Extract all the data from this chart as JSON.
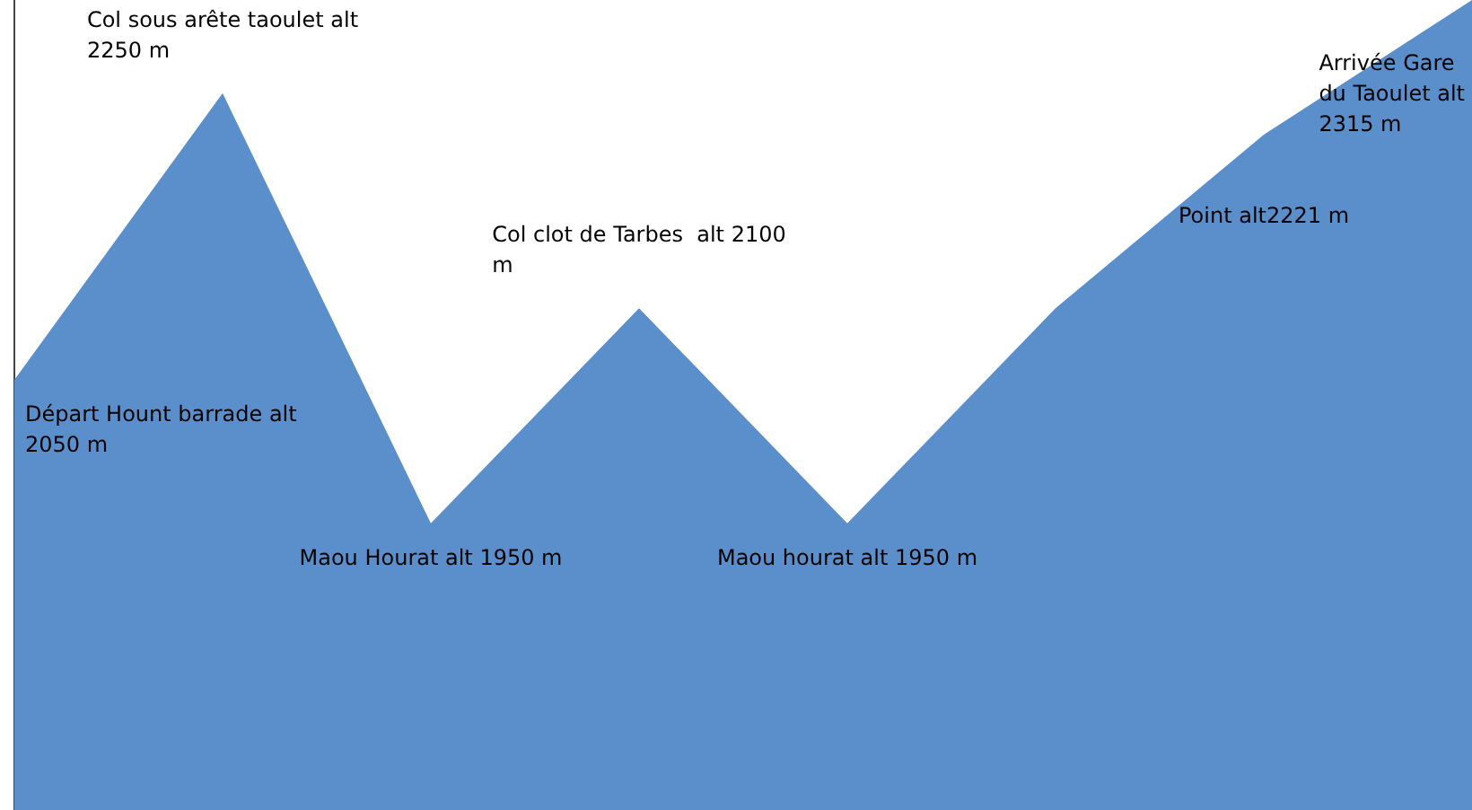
{
  "chart_data": {
    "type": "area",
    "categories": [
      null,
      null,
      null,
      null,
      null,
      null,
      null,
      null
    ],
    "ylim": [
      1750,
      2315
    ],
    "tick_labels": false,
    "series": [
      {
        "color": "#5b8fcb",
        "values": [
          2050,
          2250,
          1950,
          2100,
          1950,
          2100,
          2221,
          2315
        ],
        "value_labels": [
          "Départ Hount barrade alt 2050 m",
          "Col sous arête taoulet alt 2250 m",
          "Maou Hourat alt 1950 m",
          "Col clot de Tarbes  alt 2100 m",
          "Maou hourat alt 1950 m",
          null,
          "Point alt2221 m",
          "Arrivée Gare du Taoulet alt 2315 m"
        ]
      }
    ],
    "legend": false
  }
}
